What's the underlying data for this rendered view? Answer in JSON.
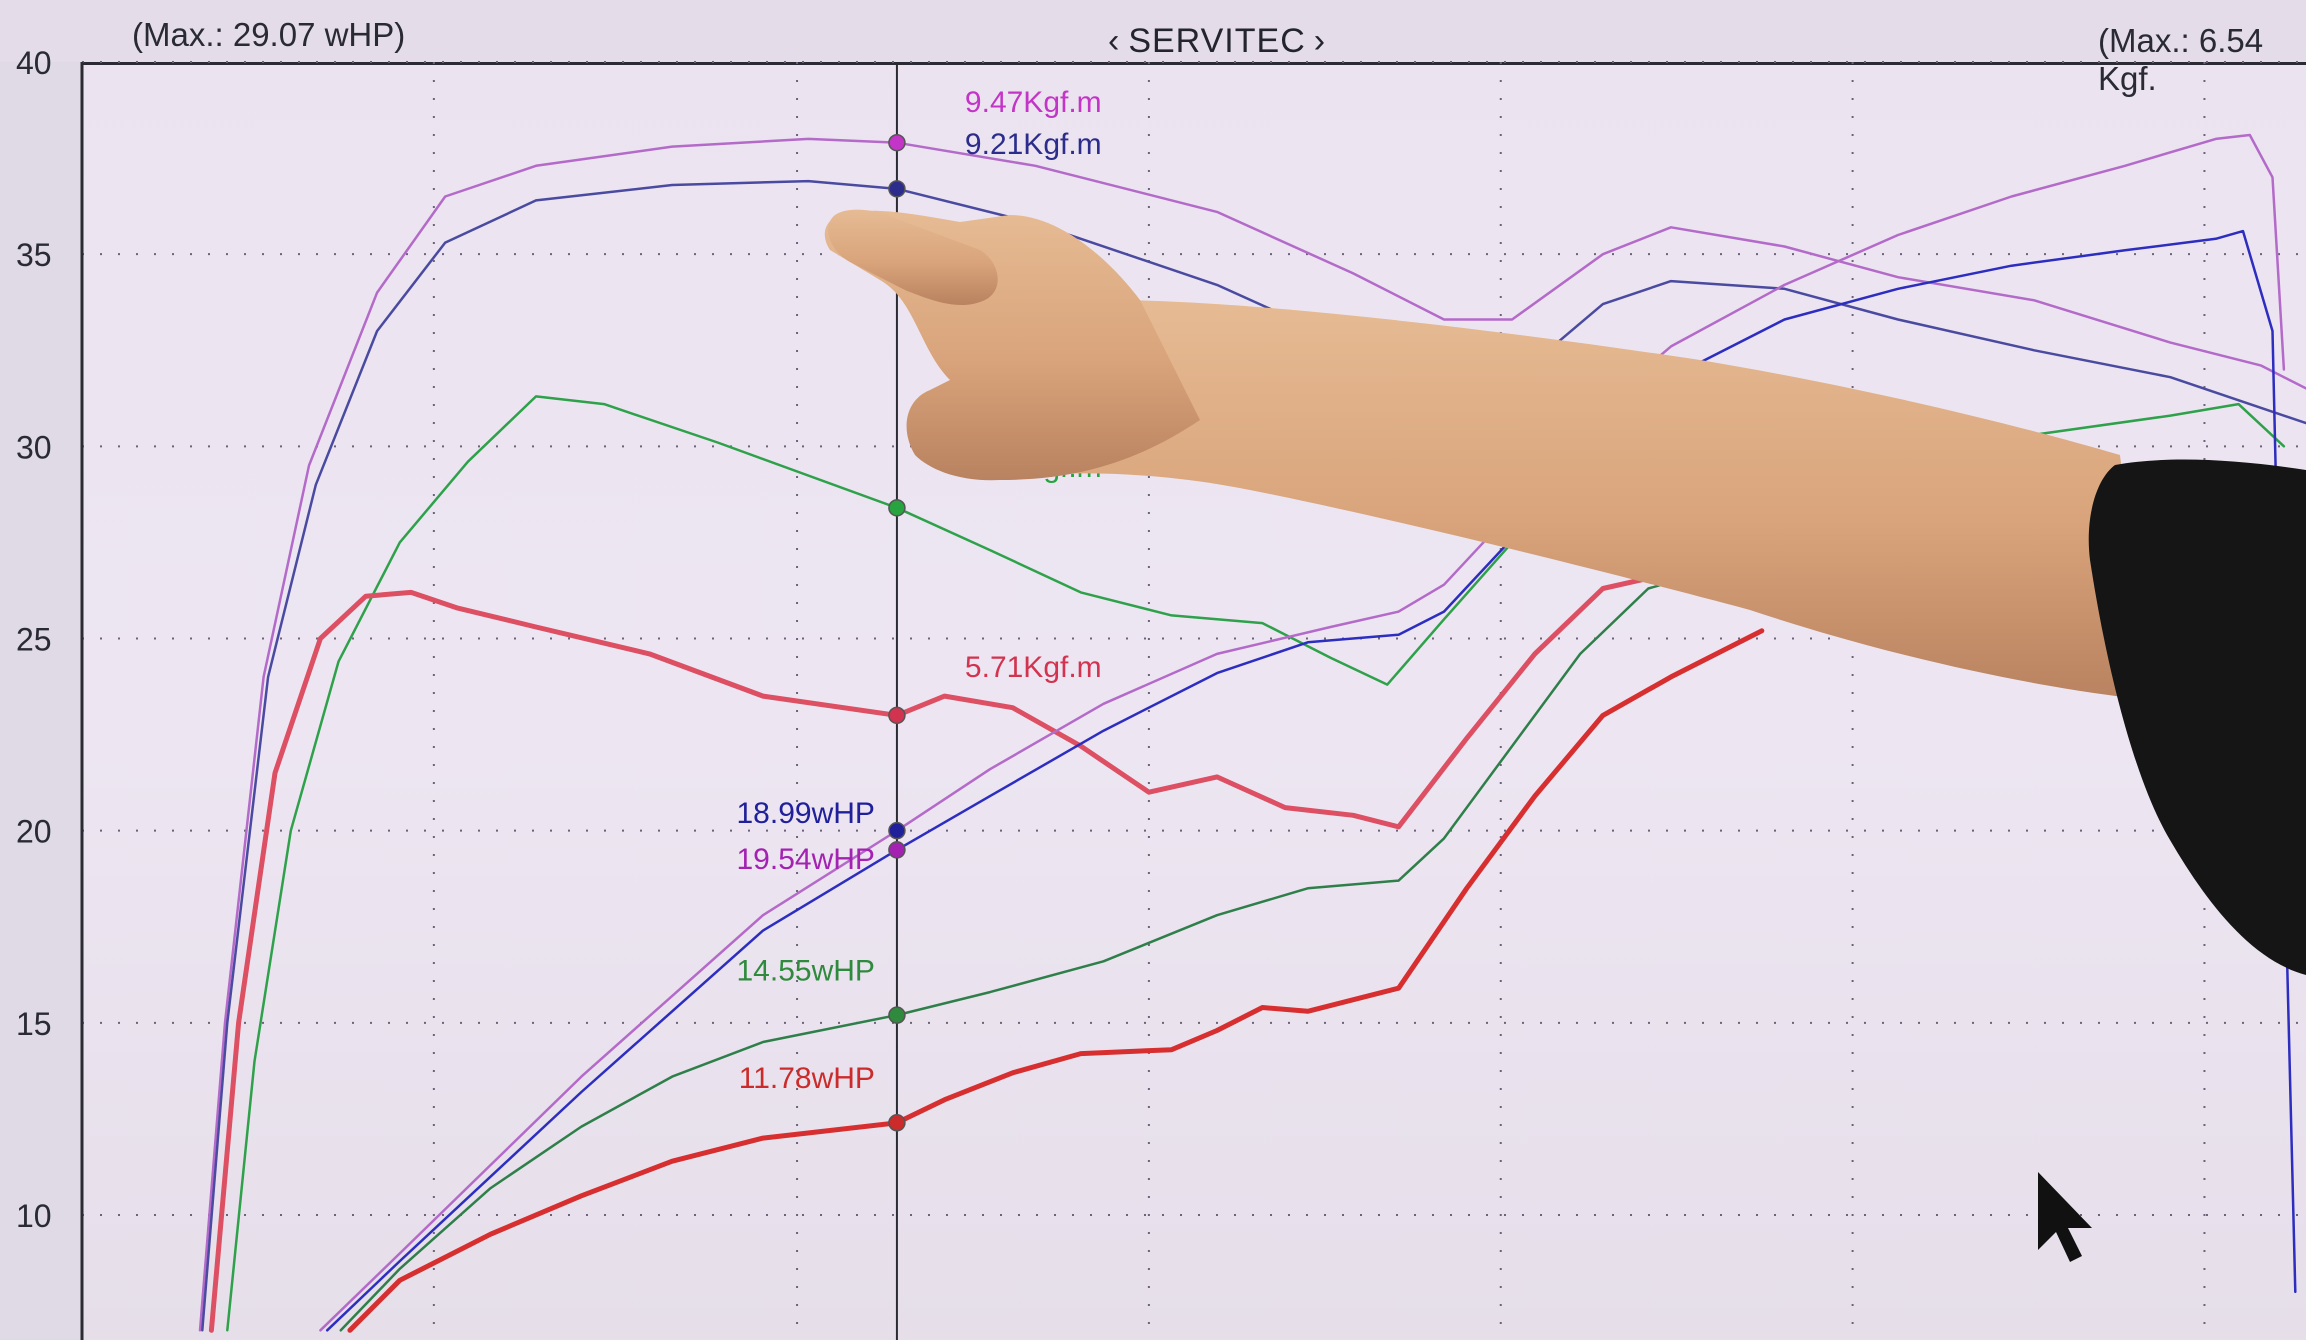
{
  "header": {
    "max_left": "(Max.: 29.07 wHP)",
    "title": "SERVITEC",
    "title_arrow_left": "‹",
    "title_arrow_right": "›",
    "max_right": "(Max.: 6.54 Kgf."
  },
  "chart_data": {
    "type": "line",
    "title": "SERVITEC",
    "yticks": [
      "40",
      "35",
      "30",
      "25",
      "20",
      "15",
      "10"
    ],
    "ylim": [
      7,
      40
    ],
    "xlim": [
      0,
      100
    ],
    "x_cursor": 35.9,
    "grid": true,
    "series": [
      {
        "color": "#b36ac9",
        "role": "torque",
        "points": [
          [
            5.2,
            7
          ],
          [
            6.3,
            15
          ],
          [
            8,
            24
          ],
          [
            10,
            29.5
          ],
          [
            13,
            34
          ],
          [
            16,
            36.5
          ],
          [
            20,
            37.3
          ],
          [
            26,
            37.8
          ],
          [
            32,
            38.0
          ],
          [
            35.9,
            37.9
          ],
          [
            42,
            37.3
          ],
          [
            50,
            36.1
          ],
          [
            56,
            34.5
          ],
          [
            60,
            33.3
          ],
          [
            63,
            33.3
          ],
          [
            67,
            35.0
          ],
          [
            70,
            35.7
          ],
          [
            75,
            35.2
          ],
          [
            80,
            34.4
          ],
          [
            86,
            33.8
          ],
          [
            92,
            32.7
          ],
          [
            96,
            32.1
          ],
          [
            98,
            31.5
          ]
        ]
      },
      {
        "color": "#4a4aa0",
        "role": "torque",
        "points": [
          [
            5.3,
            7
          ],
          [
            6.4,
            15
          ],
          [
            8.2,
            24
          ],
          [
            10.3,
            29
          ],
          [
            13,
            33
          ],
          [
            16,
            35.3
          ],
          [
            20,
            36.4
          ],
          [
            26,
            36.8
          ],
          [
            32,
            36.9
          ],
          [
            35.9,
            36.7
          ],
          [
            42,
            35.8
          ],
          [
            50,
            34.2
          ],
          [
            56,
            32.6
          ],
          [
            60,
            31.7
          ],
          [
            63,
            31.7
          ],
          [
            67,
            33.7
          ],
          [
            70,
            34.3
          ],
          [
            75,
            34.1
          ],
          [
            80,
            33.3
          ],
          [
            86,
            32.5
          ],
          [
            92,
            31.8
          ],
          [
            96,
            31.0
          ],
          [
            98,
            30.6
          ]
        ]
      },
      {
        "color": "#2ea14a",
        "role": "torque",
        "points": [
          [
            6.4,
            7
          ],
          [
            7.6,
            14
          ],
          [
            9.2,
            20
          ],
          [
            11.3,
            24.4
          ],
          [
            14,
            27.5
          ],
          [
            17,
            29.6
          ],
          [
            20,
            31.3
          ],
          [
            23,
            31.1
          ],
          [
            28,
            30.1
          ],
          [
            35.9,
            28.4
          ],
          [
            40,
            27.3
          ],
          [
            44,
            26.2
          ],
          [
            48,
            25.6
          ],
          [
            52,
            25.4
          ],
          [
            55,
            24.5
          ],
          [
            57.5,
            23.8
          ],
          [
            60,
            25.5
          ],
          [
            63,
            27.5
          ],
          [
            66,
            29.4
          ],
          [
            70,
            30.6
          ],
          [
            75,
            30.8
          ],
          [
            80,
            30.6
          ],
          [
            86,
            30.3
          ],
          [
            92,
            30.8
          ],
          [
            95,
            31.1
          ],
          [
            97,
            30
          ]
        ]
      },
      {
        "color": "#dd4f62",
        "role": "torque",
        "width": 5,
        "points": [
          [
            5.7,
            7
          ],
          [
            6.9,
            15
          ],
          [
            8.5,
            21.5
          ],
          [
            10.5,
            25
          ],
          [
            12.5,
            26.1
          ],
          [
            14.5,
            26.2
          ],
          [
            16.5,
            25.8
          ],
          [
            20,
            25.3
          ],
          [
            25,
            24.6
          ],
          [
            30,
            23.5
          ],
          [
            35.9,
            23.0
          ],
          [
            38,
            23.5
          ],
          [
            41,
            23.2
          ],
          [
            44,
            22.2
          ],
          [
            47,
            21.0
          ],
          [
            50,
            21.4
          ],
          [
            53,
            20.6
          ],
          [
            56,
            20.4
          ],
          [
            58,
            20.1
          ],
          [
            61,
            22.4
          ],
          [
            64,
            24.6
          ],
          [
            67,
            26.3
          ],
          [
            70,
            26.7
          ],
          [
            74,
            27.0
          ]
        ]
      },
      {
        "color": "#b36ac9",
        "role": "power",
        "points": [
          [
            10.5,
            7
          ],
          [
            14,
            9
          ],
          [
            18,
            11.3
          ],
          [
            22,
            13.6
          ],
          [
            26,
            15.7
          ],
          [
            30,
            17.8
          ],
          [
            35.9,
            20.0
          ],
          [
            40,
            21.6
          ],
          [
            45,
            23.3
          ],
          [
            50,
            24.6
          ],
          [
            55,
            25.3
          ],
          [
            58,
            25.7
          ],
          [
            60,
            26.4
          ],
          [
            63,
            28.3
          ],
          [
            66,
            30.6
          ],
          [
            70,
            32.6
          ],
          [
            75,
            34.2
          ],
          [
            80,
            35.5
          ],
          [
            85,
            36.5
          ],
          [
            90,
            37.3
          ],
          [
            94,
            38.0
          ],
          [
            95.5,
            38.1
          ],
          [
            96.5,
            37.0
          ],
          [
            97,
            32
          ]
        ]
      },
      {
        "color": "#2d2dc0",
        "role": "power",
        "points": [
          [
            10.8,
            7
          ],
          [
            14,
            8.8
          ],
          [
            18,
            11.0
          ],
          [
            22,
            13.2
          ],
          [
            26,
            15.3
          ],
          [
            30,
            17.4
          ],
          [
            35.9,
            19.5
          ],
          [
            40,
            20.9
          ],
          [
            45,
            22.6
          ],
          [
            50,
            24.1
          ],
          [
            54,
            24.9
          ],
          [
            58,
            25.1
          ],
          [
            60,
            25.7
          ],
          [
            63,
            27.6
          ],
          [
            66,
            30.0
          ],
          [
            70,
            31.8
          ],
          [
            75,
            33.3
          ],
          [
            80,
            34.1
          ],
          [
            85,
            34.7
          ],
          [
            90,
            35.1
          ],
          [
            94,
            35.4
          ],
          [
            95.2,
            35.6
          ],
          [
            96.5,
            33
          ],
          [
            97,
            20
          ],
          [
            97.5,
            8
          ]
        ]
      },
      {
        "color": "#2f7f4a",
        "role": "power",
        "points": [
          [
            11.4,
            7
          ],
          [
            14,
            8.6
          ],
          [
            18,
            10.7
          ],
          [
            22,
            12.3
          ],
          [
            26,
            13.6
          ],
          [
            30,
            14.5
          ],
          [
            35.9,
            15.2
          ],
          [
            40,
            15.8
          ],
          [
            45,
            16.6
          ],
          [
            50,
            17.8
          ],
          [
            54,
            18.5
          ],
          [
            58,
            18.7
          ],
          [
            60,
            19.8
          ],
          [
            63,
            22.2
          ],
          [
            66,
            24.6
          ],
          [
            69,
            26.3
          ],
          [
            72,
            26.8
          ]
        ]
      },
      {
        "color": "#d72f2f",
        "role": "power",
        "width": 5,
        "points": [
          [
            11.8,
            7
          ],
          [
            14,
            8.3
          ],
          [
            18,
            9.5
          ],
          [
            22,
            10.5
          ],
          [
            26,
            11.4
          ],
          [
            30,
            12.0
          ],
          [
            35.9,
            12.4
          ],
          [
            38,
            13.0
          ],
          [
            41,
            13.7
          ],
          [
            44,
            14.2
          ],
          [
            48,
            14.3
          ],
          [
            50,
            14.8
          ],
          [
            52,
            15.4
          ],
          [
            54,
            15.3
          ],
          [
            58,
            15.9
          ],
          [
            61,
            18.5
          ],
          [
            64,
            20.9
          ],
          [
            67,
            23.0
          ],
          [
            70,
            24.0
          ],
          [
            74,
            25.2
          ]
        ]
      }
    ],
    "cursor_labels": [
      {
        "text": "9.47Kgf.m",
        "color": "#c335c6",
        "x": 35.9,
        "y": 37.9,
        "side": "right",
        "ty": 38.7
      },
      {
        "text": "9.21Kgf.m",
        "color": "#2c2c8c",
        "x": 35.9,
        "y": 36.7,
        "side": "right",
        "ty": 37.6
      },
      {
        "text": "7.05Kgf.m",
        "color": "#27a33f",
        "x": 35.9,
        "y": 28.4,
        "side": "right",
        "ty": 29.2
      },
      {
        "text": "5.71Kgf.m",
        "color": "#d2334f",
        "x": 35.9,
        "y": 23.0,
        "side": "right",
        "ty": 24.0
      },
      {
        "text": "18.99wHP",
        "color": "#20209a",
        "x": 35.9,
        "y": 20.0,
        "side": "left",
        "ty": 20.2
      },
      {
        "text": "19.54wHP",
        "color": "#a322b2",
        "x": 35.9,
        "y": 19.5,
        "side": "left",
        "ty": 19.0
      },
      {
        "text": "14.55wHP",
        "color": "#2f8a3d",
        "x": 35.9,
        "y": 15.2,
        "side": "left",
        "ty": 16.1
      },
      {
        "text": "11.78wHP",
        "color": "#cc2b2b",
        "x": 35.9,
        "y": 12.4,
        "side": "left",
        "ty": 13.3
      }
    ]
  }
}
